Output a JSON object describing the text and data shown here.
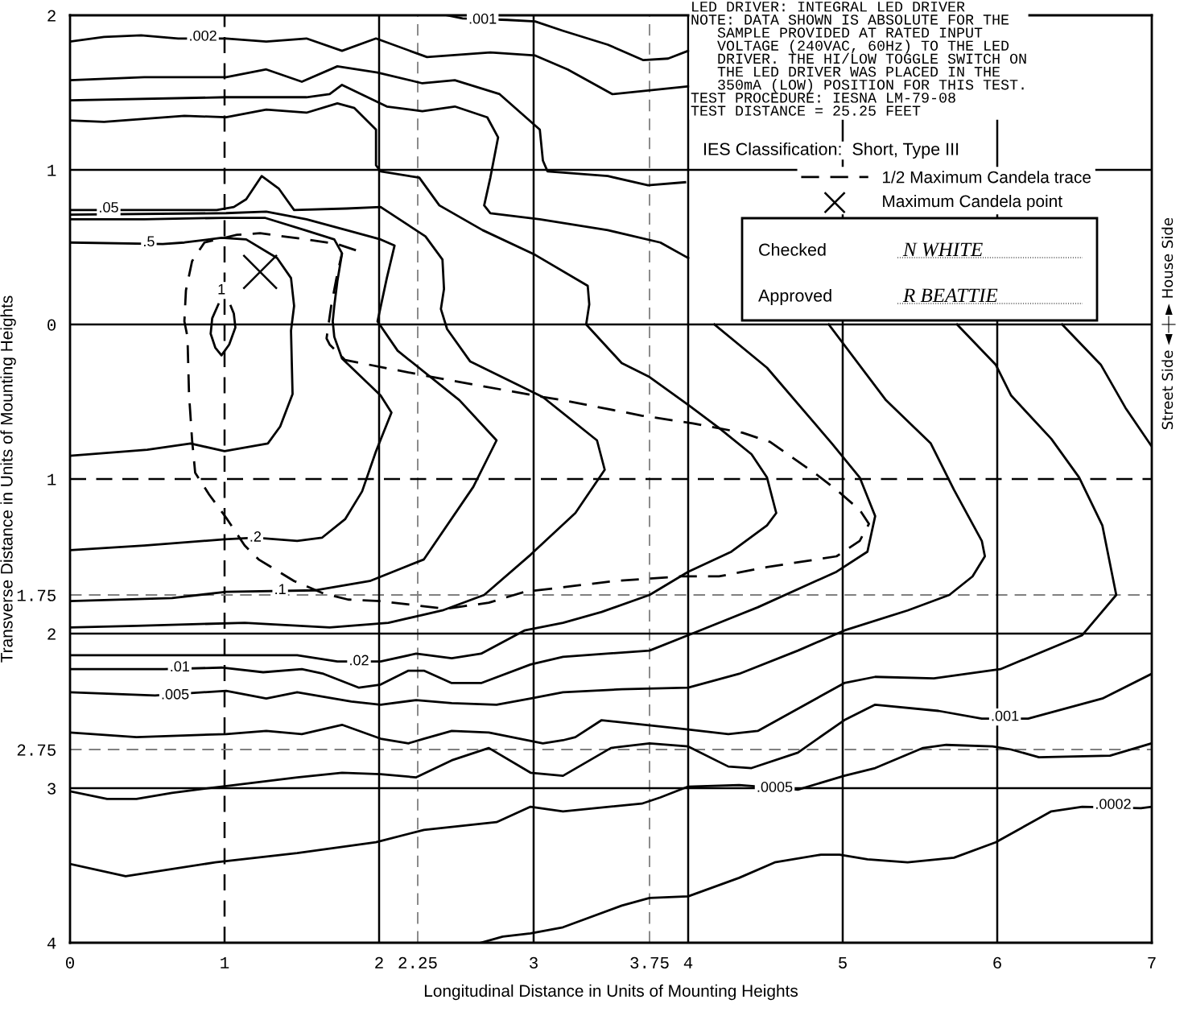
{
  "chart_data": {
    "type": "line",
    "xlabel": "Longitudinal Distance in Units of Mounting Heights",
    "ylabel": "Transverse Distance in Units of Mounting Heights",
    "xlim": [
      0,
      7
    ],
    "ylim": [
      4,
      -2
    ],
    "xticks": [
      0,
      1,
      2,
      2.25,
      3,
      3.75,
      4,
      5,
      6,
      7
    ],
    "yticks": [
      {
        "value": -2,
        "label": "2"
      },
      {
        "value": -1,
        "label": "1"
      },
      0,
      1,
      1.75,
      2,
      2.75,
      3,
      4
    ],
    "legend": "top right",
    "series": [
      {
        "type": "line",
        "color": "#000000",
        "x": [
          2.44,
          2.54,
          2.83,
          3.01,
          3.19,
          3.48,
          3.71,
          3.87,
          4.0
        ],
        "values": [
          -2.0,
          -1.98,
          -1.97,
          -1.96,
          -1.9,
          -1.81,
          -1.71,
          -1.72,
          -1.77
        ]
      },
      {
        "type": "line",
        "color": "#000000",
        "x": [
          0,
          0.22,
          0.46,
          0.7,
          1.01,
          1.27,
          1.53,
          1.76,
          1.98,
          2.31,
          2.72,
          3.01,
          3.22,
          3.51,
          4.0
        ],
        "values": [
          -1.83,
          -1.86,
          -1.87,
          -1.85,
          -1.85,
          -1.83,
          -1.85,
          -1.77,
          -1.85,
          -1.73,
          -1.76,
          -1.74,
          -1.65,
          -1.49,
          -1.54
        ]
      },
      {
        "type": "line",
        "color": "#000000",
        "x": [
          0,
          0.48,
          1.01,
          1.27,
          1.5,
          1.73,
          1.99,
          2.28,
          2.49,
          2.78,
          3.04,
          3.06,
          3.09,
          3.48,
          3.74,
          3.98
        ],
        "values": [
          -1.58,
          -1.6,
          -1.6,
          -1.65,
          -1.57,
          -1.67,
          -1.63,
          -1.56,
          -1.58,
          -1.49,
          -1.26,
          -1.06,
          -0.99,
          -0.96,
          -0.9,
          -0.92
        ]
      },
      {
        "type": "line",
        "color": "#000000",
        "x": [
          0,
          1.01,
          1.53,
          1.68,
          1.76,
          2.05,
          2.28,
          2.49,
          2.7,
          2.77,
          2.72,
          2.68,
          2.72,
          3.04,
          3.48,
          3.82,
          4.0
        ],
        "values": [
          -1.45,
          -1.47,
          -1.47,
          -1.49,
          -1.55,
          -1.41,
          -1.38,
          -1.41,
          -1.34,
          -1.21,
          -0.95,
          -0.77,
          -0.72,
          -0.68,
          -0.61,
          -0.53,
          -0.43
        ]
      },
      {
        "type": "line",
        "color": "#000000",
        "x": [
          0,
          0.22,
          0.74,
          1.01,
          1.27,
          1.53,
          1.73,
          1.84,
          1.98,
          1.98,
          2.01,
          2.26,
          2.39,
          2.67,
          3.01,
          3.35,
          3.36,
          3.34,
          3.57,
          3.75,
          4.0,
          4.2,
          4.41,
          4.51,
          4.57,
          4.51,
          4.28,
          4.0,
          3.75,
          3.44,
          3.19,
          2.94,
          2.66,
          2.47,
          2.24,
          2.01,
          1.73,
          1.47,
          0.9,
          0
        ],
        "values": [
          -1.32,
          -1.31,
          -1.35,
          -1.34,
          -1.39,
          -1.37,
          -1.43,
          -1.4,
          -1.26,
          -1.03,
          -0.99,
          -0.95,
          -0.77,
          -0.61,
          -0.45,
          -0.25,
          -0.13,
          0.0,
          0.25,
          0.34,
          0.52,
          0.67,
          0.84,
          0.99,
          1.22,
          1.3,
          1.47,
          1.6,
          1.75,
          1.86,
          1.93,
          1.98,
          2.13,
          2.16,
          2.13,
          2.18,
          2.18,
          2.14,
          2.14,
          2.14
        ]
      },
      {
        "type": "line",
        "color": "#000000",
        "x": [
          0,
          0.59,
          0.95,
          1.06,
          1.14,
          1.24,
          1.35,
          1.45,
          1.79,
          2.01,
          2.3,
          2.41,
          2.42,
          2.4,
          2.44,
          2.59,
          3.06,
          3.41,
          3.46,
          3.27,
          2.98,
          2.68,
          2.41,
          2.06,
          1.68,
          1.13,
          0.43,
          0
        ],
        "values": [
          -0.74,
          -0.74,
          -0.74,
          -0.76,
          -0.81,
          -0.96,
          -0.88,
          -0.74,
          -0.75,
          -0.76,
          -0.57,
          -0.42,
          -0.23,
          -0.1,
          0.03,
          0.24,
          0.47,
          0.75,
          0.94,
          1.22,
          1.49,
          1.75,
          1.85,
          1.93,
          1.96,
          1.93,
          1.95,
          1.96
        ]
      },
      {
        "type": "line",
        "color": "#000000",
        "x": [
          0,
          1.01,
          1.27,
          1.53,
          1.79,
          2.01,
          2.1,
          2.05,
          1.99,
          2.12,
          2.52,
          2.76,
          2.61,
          2.29,
          1.94,
          1.59,
          1.01,
          0.66,
          0
        ],
        "values": [
          -0.71,
          -0.72,
          -0.73,
          -0.68,
          -0.61,
          -0.55,
          -0.51,
          -0.3,
          -0.02,
          0.17,
          0.49,
          0.75,
          1.05,
          1.52,
          1.66,
          1.72,
          1.73,
          1.77,
          1.79
        ]
      },
      {
        "type": "line",
        "color": "#000000",
        "x": [
          0,
          0.48,
          1.0,
          1.26,
          1.52,
          1.71,
          1.76,
          1.73,
          1.71,
          1.7,
          1.71,
          1.76,
          2.01,
          2.08,
          1.98,
          1.89,
          1.78,
          1.63,
          1.47,
          1.2,
          1.0,
          0.48,
          0
        ],
        "values": [
          -0.68,
          -0.68,
          -0.69,
          -0.69,
          -0.61,
          -0.55,
          -0.46,
          -0.28,
          -0.12,
          -0.02,
          0.08,
          0.22,
          0.46,
          0.57,
          0.82,
          1.08,
          1.26,
          1.38,
          1.4,
          1.38,
          1.39,
          1.43,
          1.46
        ]
      },
      {
        "type": "line",
        "color": "#000000",
        "x": [
          0,
          0.6,
          0.74,
          0.98,
          1.14,
          1.34,
          1.43,
          1.45,
          1.43,
          1.44,
          1.36,
          1.28,
          1.0,
          0.78,
          0.5,
          0
        ],
        "values": [
          -0.53,
          -0.52,
          -0.53,
          -0.56,
          -0.55,
          -0.43,
          -0.3,
          -0.12,
          0.04,
          0.45,
          0.66,
          0.77,
          0.82,
          0.77,
          0.81,
          0.85
        ]
      },
      {
        "type": "line",
        "color": "#000000",
        "x": [
          0.96,
          0.92,
          0.91,
          0.94,
          0.98,
          1.03,
          1.07,
          1.06,
          1.04
        ],
        "values": [
          -0.13,
          -0.04,
          0.06,
          0.15,
          0.2,
          0.13,
          0.02,
          -0.07,
          -0.12
        ]
      },
      {
        "type": "line",
        "color": "#000000",
        "x": [
          4.17,
          4.51,
          4.93,
          5.11,
          5.21,
          5.16,
          4.96,
          4.45,
          4.0,
          3.75,
          3.19,
          2.98,
          2.66,
          2.47,
          2.29,
          2.19,
          2.01,
          1.87,
          1.64,
          1.5,
          1.25,
          0.98,
          0.61,
          0
        ],
        "values": [
          0,
          0.28,
          0.77,
          0.99,
          1.24,
          1.47,
          1.6,
          1.83,
          2.01,
          2.11,
          2.15,
          2.2,
          2.32,
          2.32,
          2.24,
          2.24,
          2.33,
          2.35,
          2.26,
          2.23,
          2.25,
          2.22,
          2.23,
          2.23
        ]
      },
      {
        "type": "line",
        "color": "#000000",
        "x": [
          4.91,
          5.28,
          5.57,
          5.72,
          5.9,
          5.92,
          5.84,
          5.69,
          5.42,
          5.01,
          4.71,
          4.33,
          4.0,
          3.57,
          3.19,
          2.98,
          2.76,
          2.47,
          2.24,
          2.01,
          1.82,
          1.47,
          1.27,
          1.01,
          0.55,
          0
        ],
        "values": [
          0,
          0.49,
          0.77,
          1.07,
          1.4,
          1.5,
          1.63,
          1.75,
          1.85,
          1.98,
          2.11,
          2.26,
          2.35,
          2.36,
          2.38,
          2.42,
          2.46,
          2.45,
          2.43,
          2.46,
          2.44,
          2.38,
          2.42,
          2.37,
          2.4,
          2.38
        ]
      },
      {
        "type": "line",
        "color": "#000000",
        "x": [
          5.74,
          5.99,
          6.09,
          6.35,
          6.53,
          6.68,
          6.77,
          6.55,
          6.02,
          5.59,
          5.21,
          5.01,
          4.45,
          4.26,
          4.0,
          3.44,
          3.27,
          3.19,
          3.06,
          2.71,
          2.47,
          2.29,
          2.19,
          2.01,
          1.76,
          1.5,
          1.27,
          1.01,
          0.43,
          0
        ],
        "values": [
          0,
          0.26,
          0.46,
          0.74,
          0.99,
          1.3,
          1.75,
          2.01,
          2.23,
          2.29,
          2.28,
          2.32,
          2.63,
          2.65,
          2.62,
          2.56,
          2.67,
          2.69,
          2.71,
          2.64,
          2.63,
          2.68,
          2.71,
          2.68,
          2.59,
          2.65,
          2.63,
          2.65,
          2.67,
          2.64
        ]
      },
      {
        "type": "line",
        "color": "#000000",
        "x": [
          6.42,
          6.67,
          6.83,
          7.0
        ],
        "values": [
          0,
          0.26,
          0.54,
          0.79
        ]
      },
      {
        "type": "line",
        "color": "#000000",
        "x": [
          7.0,
          6.68,
          6.2,
          5.9,
          5.62,
          5.21,
          5.01,
          4.71,
          4.41,
          4.26,
          4.0,
          3.75,
          3.5,
          3.19,
          2.98,
          2.71,
          2.47,
          2.24,
          2.01,
          1.76,
          1.47,
          0.98,
          0.66,
          0.43,
          0.24,
          0
        ],
        "values": [
          2.26,
          2.42,
          2.55,
          2.55,
          2.5,
          2.46,
          2.56,
          2.77,
          2.87,
          2.86,
          2.73,
          2.71,
          2.74,
          2.92,
          2.9,
          2.74,
          2.82,
          2.93,
          2.91,
          2.9,
          2.93,
          2.99,
          3.03,
          3.07,
          3.07,
          3.02
        ]
      },
      {
        "type": "line",
        "color": "#000000",
        "x": [
          7.0,
          6.73,
          6.27,
          6.09,
          5.97,
          5.67,
          5.52,
          5.21,
          5.01,
          4.71,
          4.33,
          4.0,
          3.82,
          3.7,
          3.19,
          2.98,
          2.76,
          2.29,
          1.98,
          1.47,
          0.94,
          0.36,
          0
        ],
        "values": [
          2.71,
          2.79,
          2.8,
          2.75,
          2.73,
          2.72,
          2.74,
          2.87,
          2.92,
          3.01,
          2.98,
          2.99,
          3.06,
          3.1,
          3.15,
          3.12,
          3.22,
          3.27,
          3.35,
          3.42,
          3.48,
          3.57,
          3.49
        ]
      },
      {
        "type": "line",
        "color": "#000000",
        "x": [
          7.0,
          6.93,
          6.55,
          6.35,
          5.99,
          5.72,
          5.42,
          5.16,
          4.98,
          4.86,
          4.56,
          4.33,
          4.0,
          3.75,
          3.57,
          3.19,
          2.98,
          2.8,
          2.66
        ],
        "values": [
          3.12,
          3.13,
          3.12,
          3.15,
          3.35,
          3.45,
          3.48,
          3.46,
          3.43,
          3.43,
          3.48,
          3.58,
          3.7,
          3.71,
          3.76,
          3.9,
          3.94,
          3.96,
          4.0
        ]
      },
      {
        "type": "line",
        "name": "1/2 Maximum Candela trace",
        "color": "#000000",
        "line_style": "dashed",
        "x": [
          1.85,
          1.73,
          1.53,
          1.23,
          1.08,
          0.87,
          0.79,
          0.75,
          0.74,
          0.76,
          0.77,
          0.79,
          0.81,
          0.9,
          1.01,
          1.13,
          1.22,
          1.45,
          1.64,
          1.8,
          2.01,
          2.43,
          2.71,
          2.94,
          3.19,
          3.52,
          3.95,
          4.2,
          4.51,
          4.96,
          5.11,
          5.17,
          5.11,
          4.96,
          4.83,
          4.53,
          4.35,
          4.03,
          3.7,
          3.19,
          3.06,
          2.29,
          1.78,
          1.68,
          1.66,
          1.69,
          1.73,
          1.76
        ],
        "values": [
          -0.48,
          -0.52,
          -0.55,
          -0.59,
          -0.58,
          -0.53,
          -0.41,
          -0.22,
          -0.02,
          0.08,
          0.45,
          0.75,
          0.96,
          1.1,
          1.25,
          1.43,
          1.52,
          1.66,
          1.74,
          1.78,
          1.79,
          1.84,
          1.8,
          1.73,
          1.7,
          1.66,
          1.63,
          1.63,
          1.57,
          1.5,
          1.4,
          1.29,
          1.2,
          1.07,
          0.97,
          0.76,
          0.7,
          0.64,
          0.59,
          0.49,
          0.47,
          0.33,
          0.23,
          0.13,
          0.09,
          -0.12,
          -0.33,
          -0.46
        ]
      },
      {
        "type": "scatter",
        "name": "Maximum Candela point",
        "color": "#000000",
        "marker": "cross",
        "x": [
          1.23
        ],
        "values": [
          -0.34
        ]
      }
    ],
    "ref_lines": [
      {
        "axis": "x",
        "value": 1,
        "color": "#000000",
        "line_style": "dashed"
      },
      {
        "axis": "x",
        "value": 2.25,
        "color": "#808080",
        "line_style": "dashed"
      },
      {
        "axis": "x",
        "value": 3.75,
        "color": "#808080",
        "line_style": "dashed"
      },
      {
        "axis": "y",
        "value": 1,
        "color": "#000000",
        "line_style": "dashed"
      },
      {
        "axis": "y",
        "value": 1.75,
        "color": "#808080",
        "line_style": "dashed"
      },
      {
        "axis": "y",
        "value": 2.75,
        "color": "#808080",
        "line_style": "dashed"
      },
      {
        "axis": "x",
        "value": 2,
        "color": "#000000",
        "line_style": "solid"
      },
      {
        "axis": "x",
        "value": 3,
        "color": "#000000",
        "line_style": "solid"
      },
      {
        "axis": "x",
        "value": 4,
        "color": "#000000",
        "line_style": "solid"
      },
      {
        "axis": "x",
        "value": 5,
        "color": "#000000",
        "line_style": "solid"
      },
      {
        "axis": "x",
        "value": 6,
        "color": "#000000",
        "line_style": "solid"
      },
      {
        "axis": "y",
        "value": -1,
        "color": "#000000",
        "line_style": "solid"
      },
      {
        "axis": "y",
        "value": 0,
        "color": "#000000",
        "line_style": "solid"
      },
      {
        "axis": "y",
        "value": 2,
        "color": "#000000",
        "line_style": "solid"
      },
      {
        "axis": "y",
        "value": 3,
        "color": "#000000",
        "line_style": "solid"
      }
    ],
    "annotations": [
      "LED DRIVER: INTEGRAL LED DRIVER\nNOTE: DATA SHOWN IS ABSOLUTE FOR THE\n   SAMPLE PROVIDED AT RATED INPUT\n   VOLTAGE (240VAC, 60Hz) TO THE LED\n   DRIVER. THE HI/LOW TOGGLE SWITCH ON\n   THE LED DRIVER WAS PLACED IN THE\n   350mA (LOW) POSITION FOR THIS TEST.\nTEST PROCEDURE: IESNA LM-79-08\nTEST DISTANCE = 25.25 FEET",
      "IES Classification:  Short, Type III",
      "Checked",
      "N WHITE",
      "Approved",
      "R BEATTIE",
      "► House Side",
      "Street Side ◄",
      {
        "text": ".001",
        "x": 2.67,
        "y": -1.97
      },
      {
        "text": ".002",
        "x": 0.86,
        "y": -1.86
      },
      {
        "text": ".05",
        "x": 0.25,
        "y": -0.75
      },
      {
        "text": ".5",
        "x": 0.51,
        "y": -0.53
      },
      {
        "text": "1",
        "x": 0.98,
        "y": -0.22
      },
      {
        "text": ".2",
        "x": 1.2,
        "y": 1.38
      },
      {
        "text": ".1",
        "x": 1.36,
        "y": 1.72
      },
      {
        "text": ".02",
        "x": 1.87,
        "y": 2.18
      },
      {
        "text": ".01",
        "x": 0.71,
        "y": 2.22
      },
      {
        "text": ".005",
        "x": 0.68,
        "y": 2.4
      },
      {
        "text": ".001",
        "x": 6.05,
        "y": 2.54
      },
      {
        "text": ".0005",
        "x": 4.56,
        "y": 3.0
      },
      {
        "text": ".0002",
        "x": 6.75,
        "y": 3.11
      }
    ]
  }
}
